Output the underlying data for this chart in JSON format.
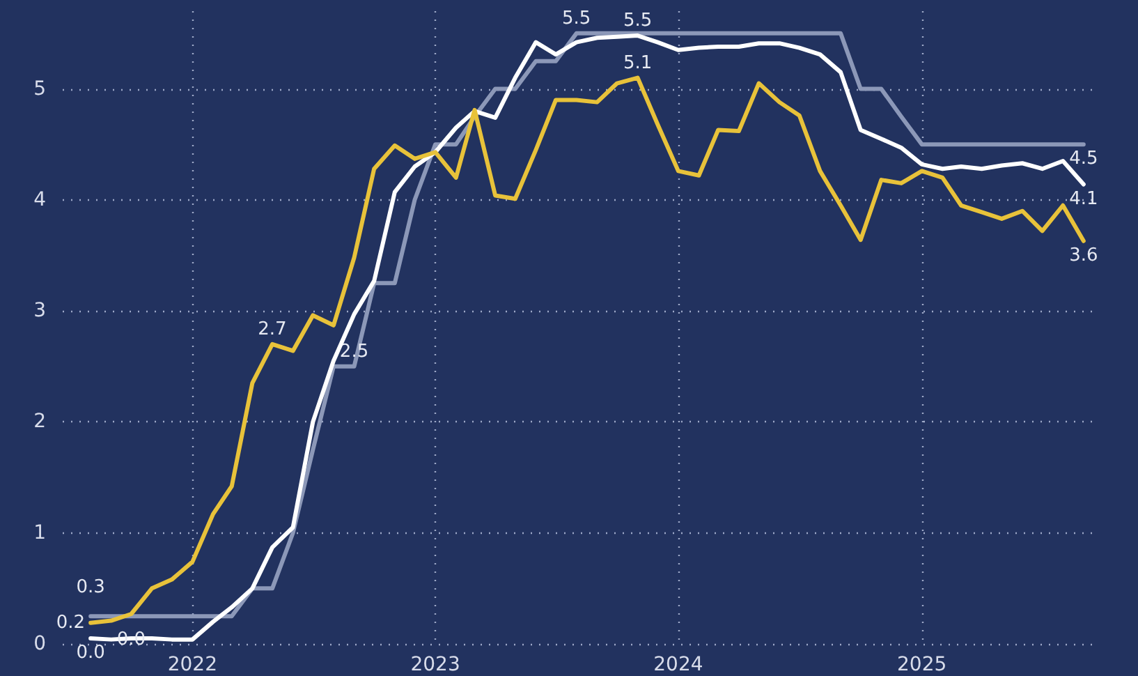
{
  "chart_data": {
    "type": "line",
    "x": [
      "2021-08",
      "2021-09",
      "2021-10",
      "2021-11",
      "2021-12",
      "2022-01",
      "2022-02",
      "2022-03",
      "2022-04",
      "2022-05",
      "2022-06",
      "2022-07",
      "2022-08",
      "2022-09",
      "2022-10",
      "2022-11",
      "2022-12",
      "2023-01",
      "2023-02",
      "2023-03",
      "2023-04",
      "2023-05",
      "2023-06",
      "2023-07",
      "2023-08",
      "2023-09",
      "2023-10",
      "2023-11",
      "2023-12",
      "2024-01",
      "2024-02",
      "2024-03",
      "2024-04",
      "2024-05",
      "2024-06",
      "2024-07",
      "2024-08",
      "2024-09",
      "2024-10",
      "2024-11",
      "2024-12",
      "2025-01",
      "2025-02",
      "2025-03",
      "2025-04",
      "2025-05",
      "2025-06",
      "2025-07",
      "2025-08",
      "2025-09"
    ],
    "series": [
      {
        "color": "#8c98b8",
        "values": [
          0.25,
          0.25,
          0.25,
          0.25,
          0.25,
          0.25,
          0.25,
          0.25,
          0.5,
          0.5,
          1.0,
          1.75,
          2.5,
          2.5,
          3.25,
          3.25,
          4.0,
          4.5,
          4.5,
          4.75,
          5.0,
          5.0,
          5.25,
          5.25,
          5.5,
          5.5,
          5.5,
          5.5,
          5.5,
          5.5,
          5.5,
          5.5,
          5.5,
          5.5,
          5.5,
          5.5,
          5.5,
          5.5,
          5.0,
          5.0,
          4.75,
          4.5,
          4.5,
          4.5,
          4.5,
          4.5,
          4.5,
          4.5,
          4.5,
          4.5
        ],
        "value_labels": [
          "0.3",
          null,
          null,
          null,
          null,
          null,
          null,
          null,
          null,
          null,
          null,
          null,
          null,
          "2.5",
          null,
          null,
          null,
          null,
          null,
          null,
          null,
          null,
          null,
          null,
          "5.5",
          null,
          null,
          null,
          null,
          null,
          null,
          null,
          null,
          null,
          null,
          null,
          null,
          null,
          null,
          null,
          null,
          null,
          null,
          null,
          null,
          null,
          null,
          null,
          null,
          "4.5"
        ]
      },
      {
        "color": "#ffffff",
        "values": [
          0.05,
          0.04,
          0.05,
          0.05,
          0.04,
          0.04,
          0.2,
          0.33,
          0.5,
          0.87,
          1.05,
          2.0,
          2.55,
          2.97,
          3.27,
          4.07,
          4.3,
          4.43,
          4.65,
          4.8,
          4.74,
          5.1,
          5.42,
          5.31,
          5.42,
          5.46,
          5.47,
          5.48,
          5.42,
          5.35,
          5.37,
          5.38,
          5.38,
          5.41,
          5.41,
          5.37,
          5.31,
          5.15,
          4.63,
          4.55,
          4.47,
          4.32,
          4.28,
          4.3,
          4.28,
          4.31,
          4.33,
          4.28,
          4.35,
          4.14
        ],
        "value_labels": [
          "0.0",
          "0.0",
          null,
          null,
          null,
          null,
          null,
          null,
          null,
          null,
          null,
          null,
          null,
          null,
          null,
          null,
          null,
          null,
          null,
          null,
          null,
          null,
          null,
          null,
          null,
          null,
          null,
          "5.5",
          null,
          null,
          null,
          null,
          null,
          null,
          null,
          null,
          null,
          null,
          null,
          null,
          null,
          null,
          null,
          null,
          null,
          null,
          null,
          null,
          null,
          "4.1"
        ]
      },
      {
        "color": "#e8c23a",
        "values": [
          0.19,
          0.21,
          0.27,
          0.5,
          0.58,
          0.74,
          1.17,
          1.42,
          2.35,
          2.7,
          2.64,
          2.96,
          2.87,
          3.48,
          4.28,
          4.49,
          4.37,
          4.43,
          4.2,
          4.81,
          4.04,
          4.01,
          4.45,
          4.9,
          4.9,
          4.88,
          5.05,
          5.1,
          4.68,
          4.26,
          4.22,
          4.63,
          4.62,
          5.05,
          4.88,
          4.76,
          4.26,
          3.95,
          3.64,
          4.18,
          4.15,
          4.26,
          4.2,
          3.95,
          3.89,
          3.83,
          3.9,
          3.72,
          3.95,
          3.63
        ],
        "value_labels": [
          "0.2",
          null,
          null,
          null,
          null,
          null,
          null,
          null,
          null,
          "2.7",
          null,
          null,
          null,
          null,
          null,
          null,
          null,
          null,
          null,
          null,
          null,
          null,
          null,
          null,
          null,
          null,
          null,
          "5.1",
          null,
          null,
          null,
          null,
          null,
          null,
          null,
          null,
          null,
          null,
          null,
          null,
          null,
          null,
          null,
          null,
          null,
          null,
          null,
          null,
          null,
          "3.6"
        ]
      }
    ],
    "xlim": [
      "2021-06-20",
      "2025-09-20"
    ],
    "xticks": [
      "2022",
      "2023",
      "2024",
      "2025"
    ],
    "ylim": [
      0,
      5.7
    ],
    "yticks": [
      0,
      1,
      2,
      3,
      4,
      5
    ],
    "grid": true,
    "marker": "none",
    "line_style": "solid"
  }
}
